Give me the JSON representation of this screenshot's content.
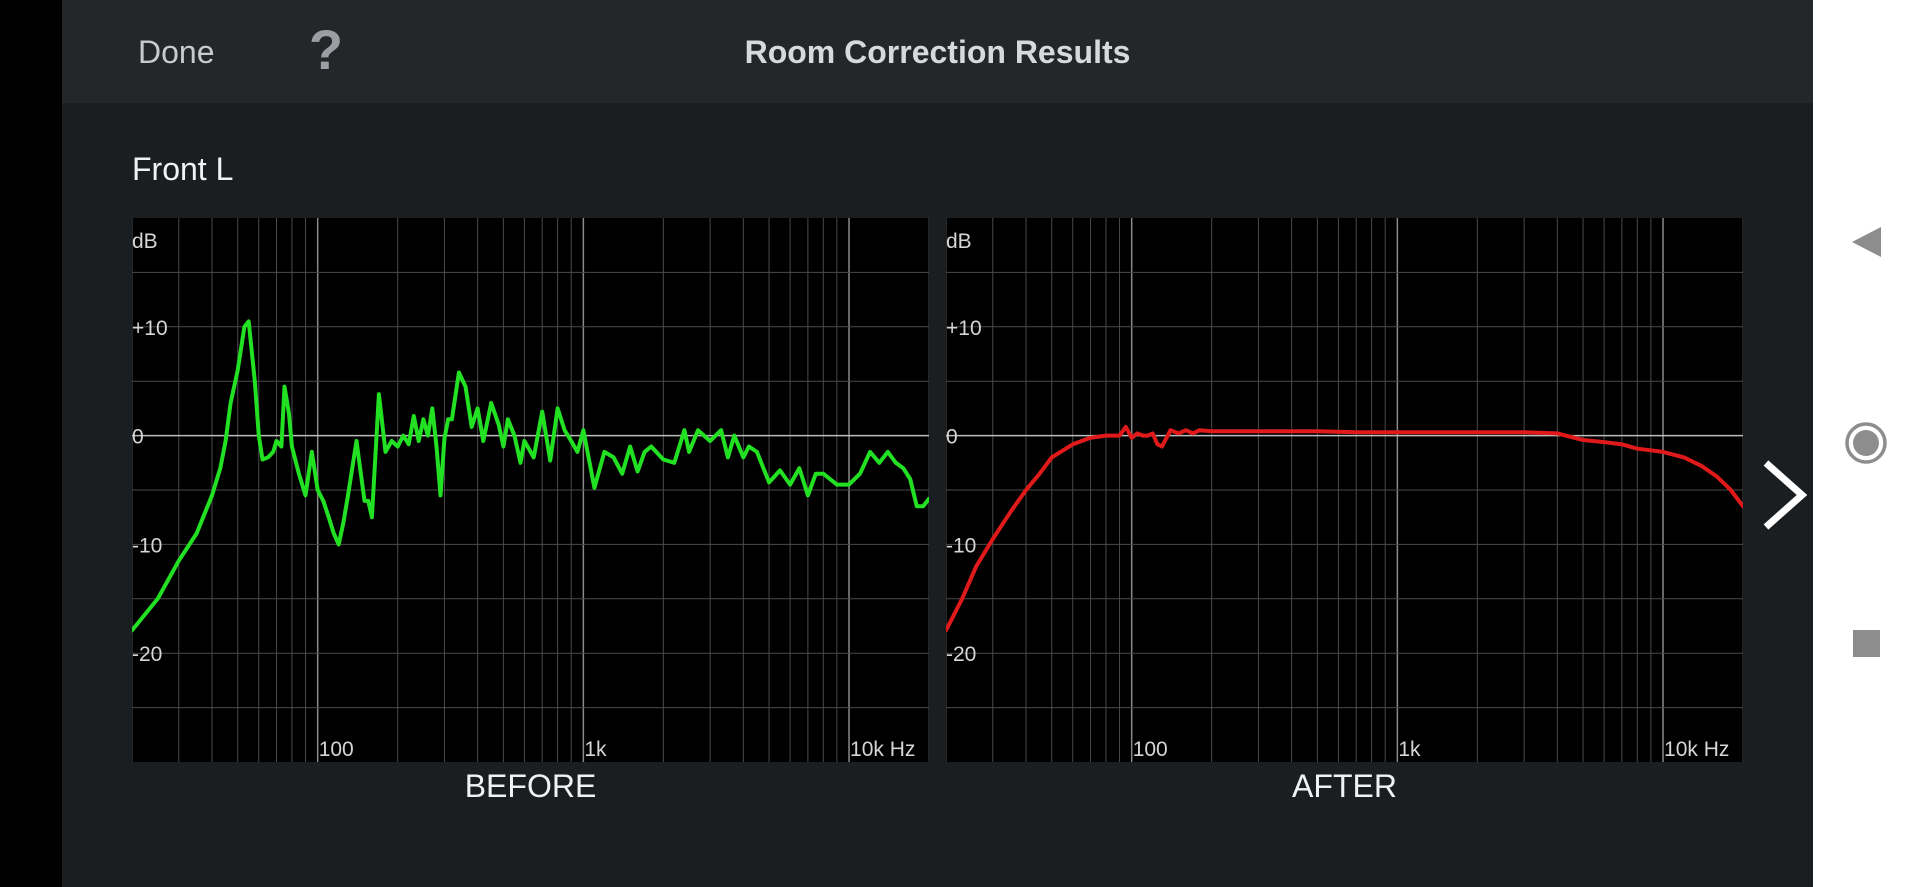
{
  "header": {
    "done_label": "Done",
    "help_label": "?",
    "title": "Room Correction Results"
  },
  "section_title": "Front L",
  "icons": {
    "help": "question-mark-icon",
    "next": "chevron-right-icon",
    "nav_back": "triangle-back-icon",
    "nav_home": "circle-home-icon",
    "nav_recents": "square-recents-icon"
  },
  "colors": {
    "background": "#1b1e21",
    "topbar": "#24272a",
    "before_curve": "#22e022",
    "after_curve": "#e01a1a",
    "grid": "#4a4a4a",
    "zero_line": "#bdbdbd"
  },
  "chart_data": [
    {
      "type": "line",
      "title": "BEFORE",
      "ylabel": "dB",
      "xscale": "log",
      "xlim": [
        20,
        20000
      ],
      "ylim": [
        -30,
        20
      ],
      "yticks": [
        {
          "value": 10,
          "label": "+10"
        },
        {
          "value": 0,
          "label": "0"
        },
        {
          "value": -10,
          "label": "-10"
        },
        {
          "value": -20,
          "label": "-20"
        }
      ],
      "xticks": [
        {
          "value": 100,
          "label": "100"
        },
        {
          "value": 1000,
          "label": "1k"
        },
        {
          "value": 10000,
          "label": "10k Hz"
        }
      ],
      "grid": true,
      "series": [
        {
          "color": "#22e022",
          "x": [
            20,
            25,
            30,
            35,
            40,
            43,
            45,
            47,
            50,
            53,
            55,
            58,
            60,
            62,
            65,
            68,
            70,
            73,
            75,
            78,
            80,
            85,
            90,
            95,
            100,
            105,
            110,
            115,
            120,
            125,
            130,
            140,
            150,
            155,
            160,
            170,
            180,
            190,
            200,
            210,
            220,
            230,
            240,
            250,
            260,
            270,
            280,
            290,
            300,
            310,
            320,
            340,
            360,
            380,
            400,
            420,
            450,
            480,
            500,
            520,
            550,
            580,
            600,
            650,
            700,
            750,
            800,
            850,
            900,
            950,
            1000,
            1100,
            1200,
            1300,
            1400,
            1500,
            1600,
            1700,
            1800,
            2000,
            2200,
            2400,
            2500,
            2700,
            3000,
            3300,
            3500,
            3700,
            4000,
            4200,
            4500,
            5000,
            5500,
            6000,
            6500,
            7000,
            7500,
            8000,
            9000,
            10000,
            11000,
            12000,
            13000,
            14000,
            15000,
            16000,
            17000,
            18000,
            19000,
            20000
          ],
          "y": [
            -17.9,
            -15,
            -11.5,
            -9,
            -5.5,
            -3,
            -0.5,
            3,
            6,
            10,
            10.5,
            5,
            0,
            -2.2,
            -2,
            -1.5,
            -0.5,
            -1,
            4.5,
            2,
            -1,
            -3.5,
            -5.5,
            -1.5,
            -5,
            -6,
            -7.5,
            -9,
            -10,
            -8,
            -5.5,
            -0.5,
            -6,
            -6,
            -7.5,
            3.8,
            -1.5,
            -0.5,
            -1,
            0,
            -0.8,
            1.8,
            -0.5,
            1.5,
            0,
            2.5,
            -1,
            -5.5,
            -0.3,
            1.5,
            1.5,
            5.8,
            4.5,
            0.8,
            2.5,
            -0.5,
            3,
            1,
            -1,
            1.5,
            0,
            -2.5,
            -0.5,
            -2,
            2.2,
            -2.3,
            2.5,
            0.5,
            -0.5,
            -1.5,
            0.5,
            -4.8,
            -1.5,
            -2,
            -3.5,
            -1,
            -3.3,
            -1.5,
            -1,
            -2.2,
            -2.5,
            0.5,
            -1.5,
            0.5,
            -0.5,
            0.5,
            -2,
            0,
            -2,
            -1,
            -1.5,
            -4.3,
            -3.2,
            -4.5,
            -3,
            -5.5,
            -3.5,
            -3.5,
            -4.5,
            -4.5,
            -3.5,
            -1.5,
            -2.5,
            -1.5,
            -2.5,
            -3,
            -4,
            -6.5,
            -6.5,
            -5.8
          ]
        }
      ]
    },
    {
      "type": "line",
      "title": "AFTER",
      "ylabel": "dB",
      "xscale": "log",
      "xlim": [
        20,
        20000
      ],
      "ylim": [
        -30,
        20
      ],
      "yticks": [
        {
          "value": 10,
          "label": "+10"
        },
        {
          "value": 0,
          "label": "0"
        },
        {
          "value": -10,
          "label": "-10"
        },
        {
          "value": -20,
          "label": "-20"
        }
      ],
      "xticks": [
        {
          "value": 100,
          "label": "100"
        },
        {
          "value": 1000,
          "label": "1k"
        },
        {
          "value": 10000,
          "label": "10k Hz"
        }
      ],
      "grid": true,
      "series": [
        {
          "color": "#e01a1a",
          "x": [
            20,
            23,
            26,
            30,
            35,
            40,
            45,
            50,
            60,
            70,
            80,
            90,
            95,
            100,
            105,
            110,
            115,
            120,
            125,
            130,
            140,
            150,
            160,
            170,
            180,
            200,
            250,
            300,
            400,
            500,
            700,
            1000,
            1500,
            2000,
            3000,
            4000,
            5000,
            6000,
            7000,
            8000,
            10000,
            12000,
            14000,
            16000,
            18000,
            20000
          ],
          "y": [
            -17.9,
            -15,
            -12,
            -9.5,
            -7,
            -5,
            -3.5,
            -2,
            -0.8,
            -0.2,
            0,
            0,
            0.8,
            -0.2,
            0.2,
            0,
            0,
            0.2,
            -0.8,
            -1,
            0.5,
            0.2,
            0.5,
            0.2,
            0.5,
            0.4,
            0.4,
            0.4,
            0.4,
            0.4,
            0.3,
            0.3,
            0.3,
            0.3,
            0.3,
            0.2,
            -0.4,
            -0.6,
            -0.8,
            -1.2,
            -1.5,
            -2,
            -2.8,
            -3.8,
            -5,
            -6.5
          ]
        }
      ]
    }
  ]
}
